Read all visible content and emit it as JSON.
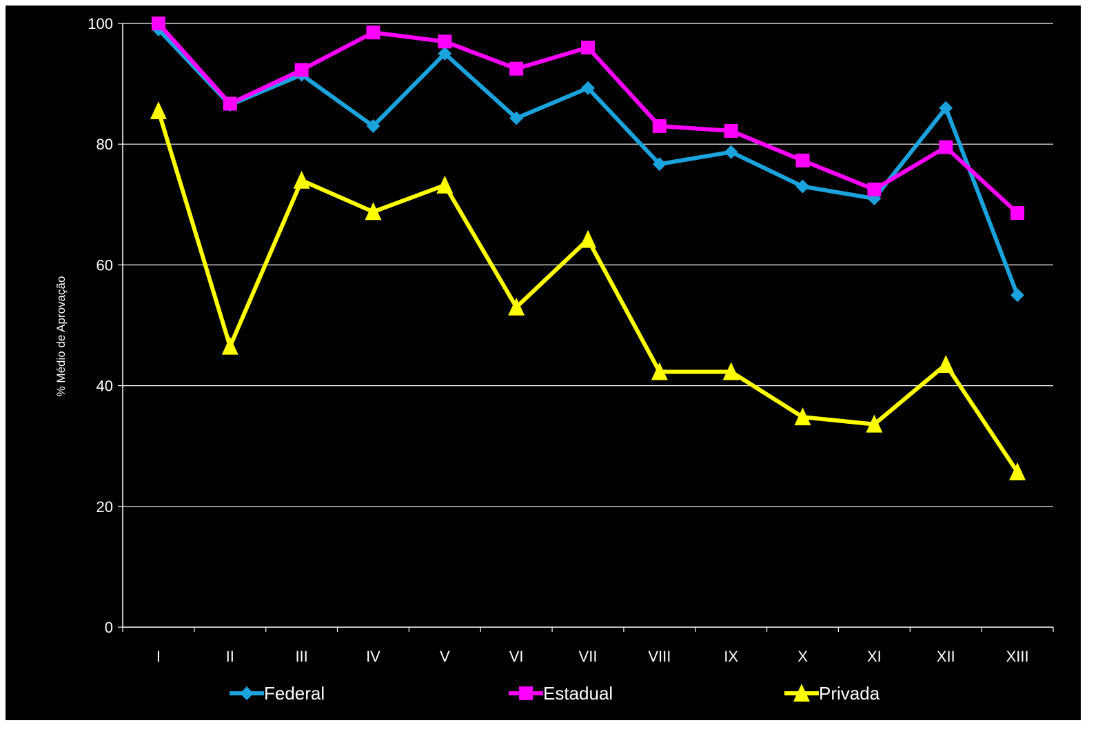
{
  "chart_data": {
    "type": "line",
    "categories": [
      "I",
      "II",
      "III",
      "IV",
      "V",
      "VI",
      "VII",
      "VIII",
      "IX",
      "X",
      "XI",
      "XII",
      "XIII"
    ],
    "ylabel": "% Médio de Aprovação",
    "ylim": [
      0,
      100
    ],
    "yticks": [
      0,
      20,
      40,
      60,
      80,
      100
    ],
    "grid": true,
    "legend_position": "bottom",
    "background": "#000000",
    "series": [
      {
        "name": "Federal",
        "color": "#1aa3dc",
        "marker": "diamond",
        "values": [
          99,
          86.5,
          91.5,
          83,
          95,
          84.3,
          89.3,
          76.7,
          78.7,
          73,
          71,
          86,
          55
        ]
      },
      {
        "name": "Estadual",
        "color": "#ff00ff",
        "marker": "square",
        "values": [
          100,
          86.7,
          92.3,
          98.5,
          97,
          92.5,
          96,
          83,
          82.2,
          77.3,
          72.5,
          79.5,
          68.6
        ]
      },
      {
        "name": "Privada",
        "color": "#ffff00",
        "marker": "triangle",
        "values": [
          85.5,
          46.5,
          74,
          68.8,
          73.2,
          53,
          64.2,
          42.3,
          42.3,
          34.8,
          33.6,
          43.5,
          25.7
        ]
      }
    ]
  }
}
